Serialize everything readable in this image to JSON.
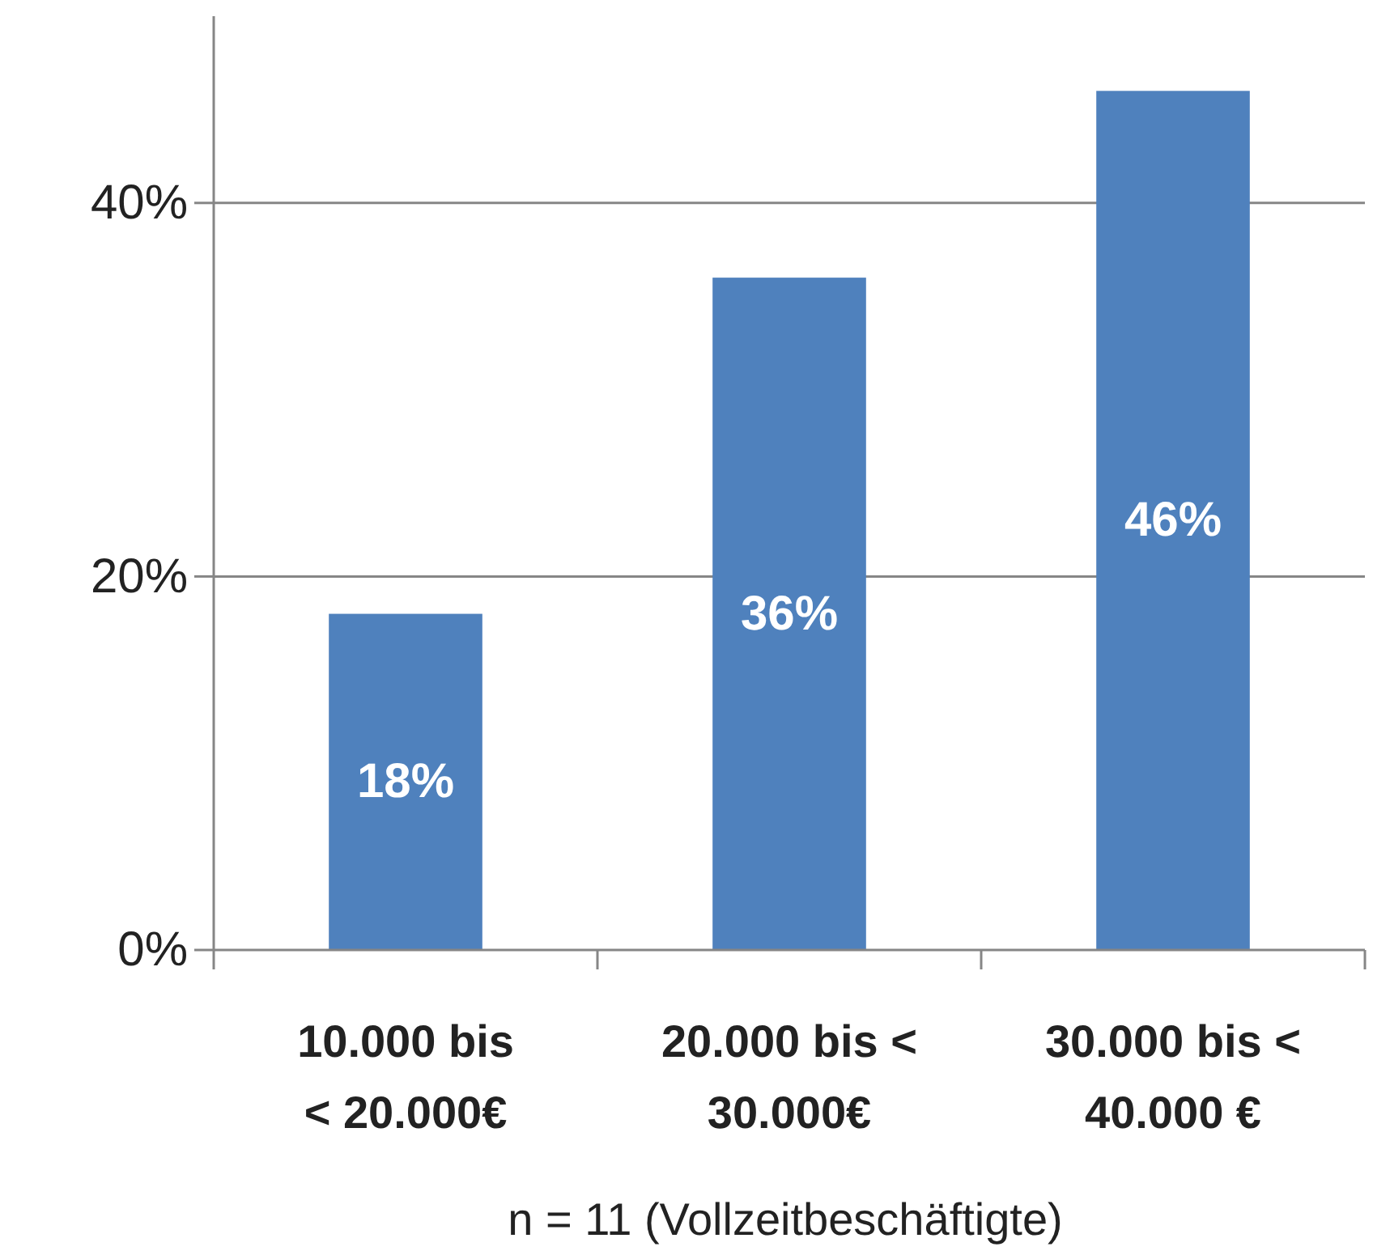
{
  "chart_data": {
    "type": "bar",
    "categories": [
      "10.000 bis\n< 20.000€",
      "20.000 bis <\n30.000€",
      "30.000 bis <\n40.000 €"
    ],
    "values": [
      18,
      36,
      46
    ],
    "color": "#4f81bd",
    "ylim": [
      0,
      50
    ],
    "yticks": [
      {
        "value": 0,
        "label": "0%"
      },
      {
        "value": 20,
        "label": "20%"
      },
      {
        "value": 40,
        "label": "40%"
      }
    ],
    "grid": "y",
    "data_labels": true,
    "value_labels": [
      "18%",
      "36%",
      "46%"
    ],
    "annotations": [
      "n = 11 (Vollzeitbeschäftigte)"
    ]
  }
}
